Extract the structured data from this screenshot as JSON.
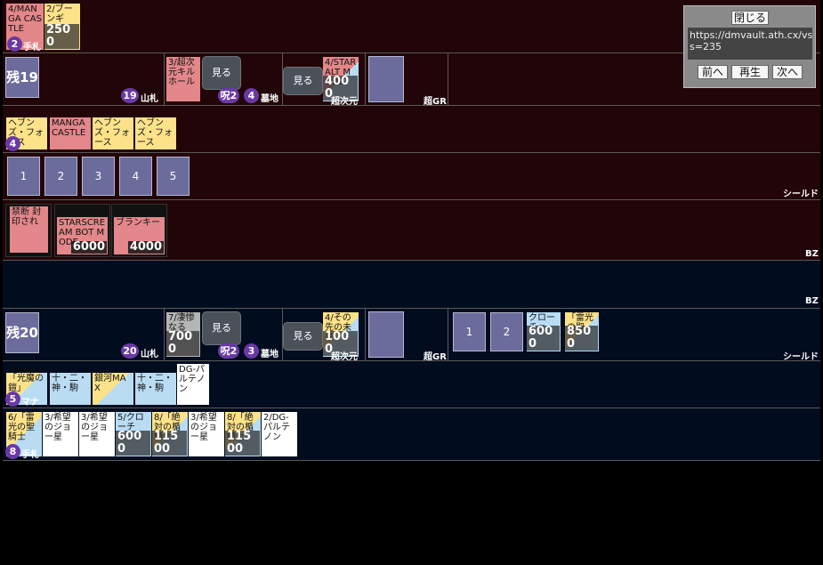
{
  "panel": {
    "close_label": "閉じる",
    "url_line1": "https://dmvault.ath.cx/vs677",
    "url_line2": "s=235",
    "prev_label": "前へ",
    "play_label": "再生",
    "next_label": "次へ"
  },
  "labels": {
    "hand": "手札",
    "deck": "山札",
    "graveyard": "墓地",
    "hyperspace": "超次元",
    "gr": "超GR",
    "shield": "シールド",
    "bz": "BZ",
    "view": "見る",
    "mana": "マナ",
    "curse": "呪2"
  },
  "opponent": {
    "hand_count": "2",
    "hand": [
      {
        "text": "4/MANGA CASTLE",
        "color": "red"
      },
      {
        "text": "2/ブーンギ",
        "color": "yellow",
        "power": "2500"
      }
    ],
    "deck_remaining": "残19",
    "deck_count": "19",
    "graveyard_top": "3/超次元キルホール",
    "graveyard_count": "4",
    "hyperspace_top": "4/STARALT MODE",
    "hyperspace_power": "4000",
    "mana_count": "4",
    "mana": [
      {
        "text": "ヘブンズ・フォース",
        "color": "yellow"
      },
      {
        "text": "MANGA CASTLE",
        "color": "red"
      },
      {
        "text": "ヘブンズ・フォース",
        "color": "yellow"
      },
      {
        "text": "ヘブンズ・フォース",
        "color": "yellow"
      }
    ],
    "shields": [
      "1",
      "2",
      "3",
      "4",
      "5"
    ],
    "bz": [
      {
        "text": "禁断 封印され",
        "color": "red"
      },
      {
        "text": "STARSCREAM BOT MODE",
        "color": "red",
        "power": "6000"
      },
      {
        "text": "ブランキー",
        "color": "red",
        "power": "4000"
      }
    ]
  },
  "me": {
    "deck_remaining": "残20",
    "deck_count": "20",
    "graveyard_top": "7/凄惨なる",
    "graveyard_power": "7000",
    "graveyard_count": "3",
    "hyperspace_top": "4/その先の未来",
    "hyperspace_power": "1000",
    "shields": [
      {
        "label": "1"
      },
      {
        "label": "2"
      },
      {
        "text": "クローチェ・",
        "color": "blue",
        "power": "6000"
      },
      {
        "text": "「雷光の聖",
        "color": "yellowblue",
        "power": "8500"
      }
    ],
    "mana_count": "5",
    "mana": [
      {
        "text": "「光魔の鎧」",
        "color": "yellowblue"
      },
      {
        "text": "十・二・神・駒",
        "color": "blue"
      },
      {
        "text": "銀河MAX",
        "color": "yellowblue"
      },
      {
        "text": "十・二・神・駒",
        "color": "blue"
      },
      {
        "text": "DG-パルテノン",
        "color": "white"
      }
    ],
    "hand_count": "8",
    "hand": [
      {
        "text": "6/「雷光の聖騎士",
        "color": "yellowblue",
        "power": "8500"
      },
      {
        "text": "3/希望のジョー星",
        "color": "white"
      },
      {
        "text": "3/希望のジョー星",
        "color": "white"
      },
      {
        "text": "5/クローチェ・",
        "color": "blue",
        "power": "6000"
      },
      {
        "text": "8/「絶対の楯騎士",
        "color": "yellowblue",
        "power": "11500"
      },
      {
        "text": "3/希望のジョー星",
        "color": "white"
      },
      {
        "text": "8/「絶対の楯騎士",
        "color": "yellowblue",
        "power": "11500"
      },
      {
        "text": "2/DG-パルテノン",
        "color": "white"
      }
    ]
  }
}
